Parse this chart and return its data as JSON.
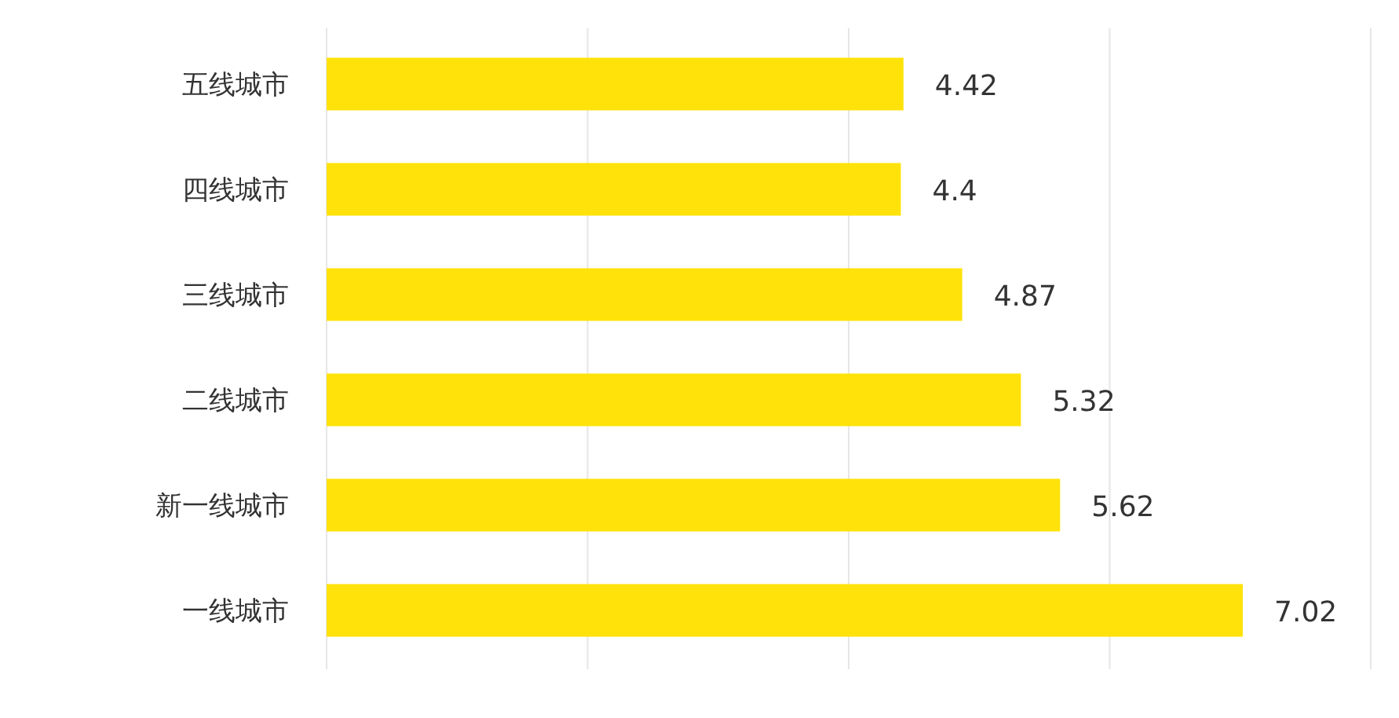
{
  "chart_data": {
    "type": "bar",
    "orientation": "horizontal",
    "categories": [
      "五线城市",
      "四线城市",
      "三线城市",
      "二线城市",
      "新一线城市",
      "一线城市"
    ],
    "values": [
      4.42,
      4.4,
      4.87,
      5.32,
      5.62,
      7.02
    ],
    "color": "#ffe20a",
    "xlim": [
      0,
      8
    ],
    "xticks": [
      {
        "value": 0,
        "label": null
      },
      {
        "value": 2,
        "label": null
      },
      {
        "value": 4,
        "label": null
      },
      {
        "value": 6,
        "label": null
      },
      {
        "value": 8,
        "label": null
      }
    ],
    "tick_labels": "y",
    "grid": "x",
    "data_labels": true
  }
}
